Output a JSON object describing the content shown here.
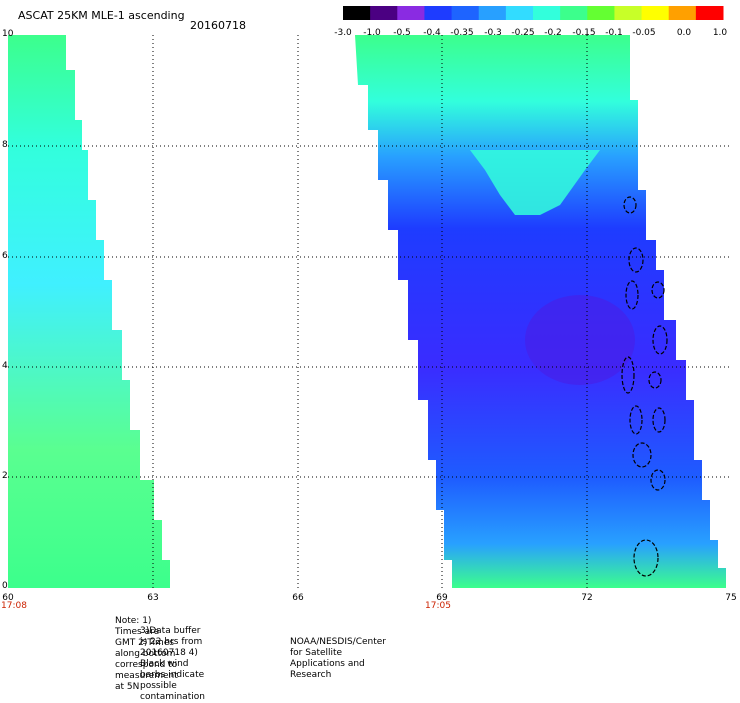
{
  "header": {
    "title": "ASCAT 25KM MLE-1 ascending",
    "date": "20160718"
  },
  "colorbar": {
    "labels": [
      "-3.0",
      "-1.0",
      "-0.5",
      "-0.4",
      "-0.35",
      "-0.3",
      "-0.25",
      "-0.2",
      "-0.15",
      "-0.1",
      "-0.05",
      "0.0",
      "1.0"
    ],
    "colors": [
      "#000000",
      "#4b0082",
      "#8a2be2",
      "#1e3cff",
      "#1e64ff",
      "#28a0ff",
      "#32dcff",
      "#32ffdc",
      "#3cff8c",
      "#64ff32",
      "#c8ff28",
      "#ffff00",
      "#ffa000",
      "#ff0000"
    ]
  },
  "map": {
    "y_ticks": [
      "0",
      "2",
      "4",
      "6",
      "8",
      "10"
    ],
    "x_ticks": [
      "60",
      "63",
      "66",
      "69",
      "72",
      "75"
    ],
    "time_labels": [
      "17:08",
      "17:05"
    ]
  },
  "footer": {
    "line1": "Note: 1) Times are GMT 2)Times along bottom correspond to measurement at 5N",
    "line2": "3)Data buffer is 22 hrs from 20160718 4) Black wind barbs indicate possible contamination",
    "line3": "NOAA/NESDIS/Center for Satellite Applications and Research"
  }
}
